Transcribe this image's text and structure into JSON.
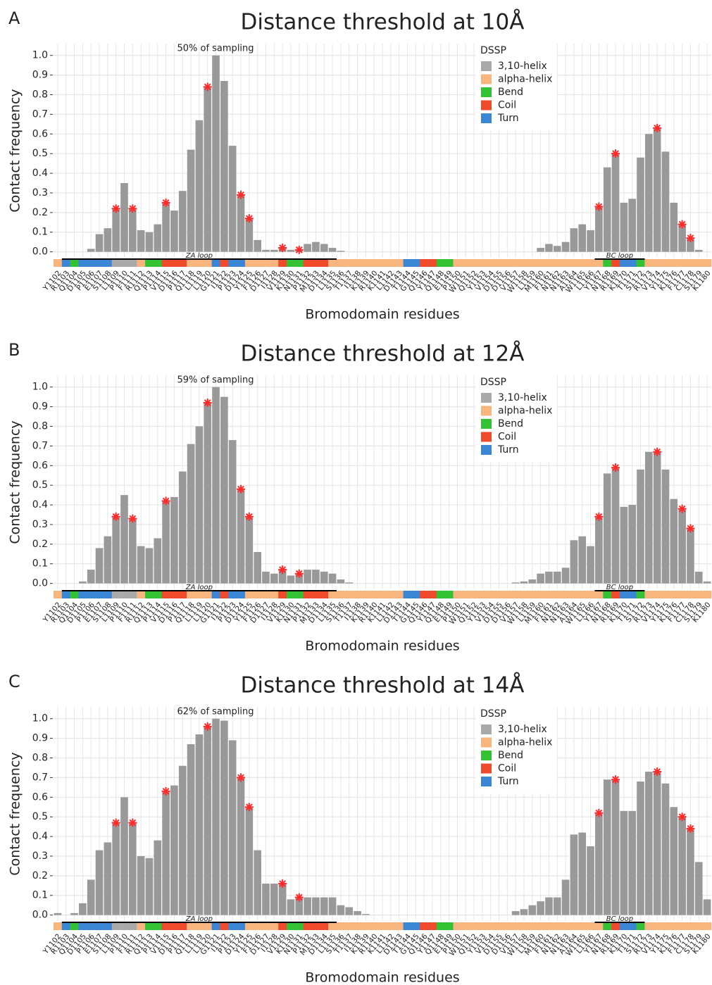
{
  "chart_data": [
    {
      "type": "bar",
      "panel": "A",
      "title": "Distance threshold at 10Å",
      "annotation": "50% of sampling",
      "y_label": "Contact frequency",
      "x_label": "Bromodomain residues",
      "color": "#999999",
      "star_color": "#ff2a2a",
      "grid": true,
      "categories": [
        "Y1102",
        "R1103",
        "Q1104",
        "D1105",
        "P1106",
        "E1107",
        "S1108",
        "L1109",
        "P1110",
        "F1111",
        "R1112",
        "Q1113",
        "P1114",
        "V1115",
        "D1116",
        "P1117",
        "Q1118",
        "L1119",
        "L1120",
        "G1121",
        "I1122",
        "P1123",
        "D1124",
        "Y1125",
        "F1126",
        "D1127",
        "I1128",
        "V1129",
        "K1130",
        "N1131",
        "P1132",
        "M1133",
        "D1134",
        "L1135",
        "S1136",
        "T1137",
        "I1138",
        "K1139",
        "R1140",
        "K1141",
        "L1142",
        "D1143",
        "T1144",
        "G1145",
        "Q1146",
        "Y1147",
        "Q1148",
        "E1149",
        "P1150",
        "W1151",
        "Q1152",
        "Y1153",
        "V1154",
        "D1155",
        "D1156",
        "V1157",
        "W1158",
        "L1159",
        "M1160",
        "F1161",
        "N1162",
        "N1163",
        "A1164",
        "W1165",
        "L1166",
        "Y1167",
        "N1168",
        "R1169",
        "K1170",
        "T1171",
        "S1172",
        "R1173",
        "V1174",
        "Y1175",
        "K1176",
        "F1177",
        "C1178",
        "S1179",
        "K1180"
      ],
      "values": [
        0,
        0,
        0,
        0,
        0.015,
        0.09,
        0.12,
        0.22,
        0.35,
        0.22,
        0.11,
        0.1,
        0.14,
        0.25,
        0.21,
        0.31,
        0.52,
        0.67,
        0.84,
        1.0,
        0.87,
        0.54,
        0.29,
        0.17,
        0.06,
        0.01,
        0.01,
        0.02,
        0.01,
        0.01,
        0.04,
        0.05,
        0.04,
        0.02,
        0.005,
        0,
        0,
        0,
        0,
        0,
        0,
        0,
        0,
        0,
        0,
        0,
        0,
        0,
        0,
        0,
        0,
        0,
        0,
        0,
        0,
        0,
        0,
        0,
        0.02,
        0.04,
        0.03,
        0.05,
        0.12,
        0.14,
        0.11,
        0.23,
        0.43,
        0.5,
        0.25,
        0.27,
        0.48,
        0.6,
        0.63,
        0.51,
        0.25,
        0.14,
        0.07,
        0.01,
        0
      ],
      "starred": [
        "L1109",
        "F1111",
        "V1115",
        "L1120",
        "D1124",
        "Y1125",
        "V1129",
        "N1131",
        "Y1167",
        "R1169",
        "V1174",
        "F1177",
        "C1178"
      ],
      "ylim": [
        -0.03,
        1.06
      ],
      "yticks": [
        {
          "value": 0,
          "label": "0.0"
        },
        0.1,
        0.2,
        0.3,
        0.4,
        0.5,
        0.6,
        0.7,
        0.8,
        0.9,
        {
          "value": 1,
          "label": "1.0"
        }
      ]
    },
    {
      "type": "bar",
      "panel": "B",
      "title": "Distance threshold at 12Å",
      "annotation": "59% of sampling",
      "y_label": "Contact frequency",
      "x_label": "Bromodomain residues",
      "color": "#999999",
      "star_color": "#ff2a2a",
      "grid": true,
      "categories": [
        "Y1102",
        "R1103",
        "Q1104",
        "D1105",
        "P1106",
        "E1107",
        "S1108",
        "L1109",
        "P1110",
        "F1111",
        "R1112",
        "Q1113",
        "P1114",
        "V1115",
        "D1116",
        "P1117",
        "Q1118",
        "L1119",
        "L1120",
        "G1121",
        "I1122",
        "P1123",
        "D1124",
        "Y1125",
        "F1126",
        "D1127",
        "I1128",
        "V1129",
        "K1130",
        "N1131",
        "P1132",
        "M1133",
        "D1134",
        "L1135",
        "S1136",
        "T1137",
        "I1138",
        "K1139",
        "R1140",
        "K1141",
        "L1142",
        "D1143",
        "T1144",
        "G1145",
        "Q1146",
        "Y1147",
        "Q1148",
        "E1149",
        "P1150",
        "W1151",
        "Q1152",
        "Y1153",
        "V1154",
        "D1155",
        "D1156",
        "V1157",
        "W1158",
        "L1159",
        "M1160",
        "F1161",
        "N1162",
        "N1163",
        "A1164",
        "W1165",
        "L1166",
        "Y1167",
        "N1168",
        "R1169",
        "K1170",
        "T1171",
        "S1172",
        "R1173",
        "V1174",
        "Y1175",
        "K1176",
        "F1177",
        "C1178",
        "S1179",
        "K1180"
      ],
      "values": [
        0,
        0,
        0,
        0.01,
        0.07,
        0.18,
        0.24,
        0.34,
        0.45,
        0.33,
        0.19,
        0.18,
        0.23,
        0.42,
        0.44,
        0.57,
        0.71,
        0.8,
        0.92,
        1.0,
        0.95,
        0.73,
        0.48,
        0.34,
        0.16,
        0.06,
        0.05,
        0.07,
        0.04,
        0.05,
        0.07,
        0.07,
        0.06,
        0.05,
        0.02,
        0.005,
        0,
        0,
        0,
        0,
        0,
        0,
        0,
        0,
        0,
        0,
        0,
        0,
        0,
        0,
        0,
        0,
        0,
        0,
        0,
        0.005,
        0.01,
        0.02,
        0.05,
        0.06,
        0.06,
        0.08,
        0.22,
        0.24,
        0.19,
        0.34,
        0.56,
        0.59,
        0.39,
        0.4,
        0.58,
        0.67,
        0.67,
        0.58,
        0.43,
        0.38,
        0.28,
        0.06,
        0.01
      ],
      "starred": [
        "L1109",
        "F1111",
        "V1115",
        "L1120",
        "D1124",
        "Y1125",
        "V1129",
        "N1131",
        "Y1167",
        "R1169",
        "V1174",
        "F1177",
        "C1178"
      ],
      "ylim": [
        -0.03,
        1.06
      ],
      "yticks": [
        {
          "value": 0,
          "label": "0.0"
        },
        0.1,
        0.2,
        0.3,
        0.4,
        0.5,
        0.6,
        0.7,
        0.8,
        0.9,
        {
          "value": 1,
          "label": "1.0"
        }
      ]
    },
    {
      "type": "bar",
      "panel": "C",
      "title": "Distance threshold at 14Å",
      "annotation": "62% of sampling",
      "y_label": "Contact frequency",
      "x_label": "Bromodomain residues",
      "color": "#999999",
      "star_color": "#ff2a2a",
      "grid": true,
      "categories": [
        "Y1102",
        "R1103",
        "Q1104",
        "D1105",
        "P1106",
        "E1107",
        "S1108",
        "L1109",
        "P1110",
        "F1111",
        "R1112",
        "Q1113",
        "P1114",
        "V1115",
        "D1116",
        "P1117",
        "Q1118",
        "L1119",
        "L1120",
        "G1121",
        "I1122",
        "P1123",
        "D1124",
        "Y1125",
        "F1126",
        "D1127",
        "I1128",
        "V1129",
        "K1130",
        "N1131",
        "P1132",
        "M1133",
        "D1134",
        "L1135",
        "S1136",
        "T1137",
        "I1138",
        "K1139",
        "R1140",
        "K1141",
        "L1142",
        "D1143",
        "T1144",
        "G1145",
        "Q1146",
        "Y1147",
        "Q1148",
        "E1149",
        "P1150",
        "W1151",
        "Q1152",
        "Y1153",
        "V1154",
        "D1155",
        "D1156",
        "V1157",
        "W1158",
        "L1159",
        "M1160",
        "F1161",
        "N1162",
        "N1163",
        "A1164",
        "W1165",
        "L1166",
        "Y1167",
        "N1168",
        "R1169",
        "K1170",
        "T1171",
        "S1172",
        "R1173",
        "V1174",
        "Y1175",
        "K1176",
        "F1177",
        "C1178",
        "S1179",
        "K1180"
      ],
      "values": [
        0.01,
        0,
        0.01,
        0.06,
        0.18,
        0.33,
        0.37,
        0.47,
        0.6,
        0.47,
        0.3,
        0.29,
        0.38,
        0.63,
        0.66,
        0.76,
        0.87,
        0.92,
        0.96,
        1.0,
        0.99,
        0.89,
        0.7,
        0.55,
        0.33,
        0.16,
        0.16,
        0.16,
        0.08,
        0.09,
        0.09,
        0.09,
        0.09,
        0.09,
        0.05,
        0.04,
        0.02,
        0.005,
        0,
        0,
        0,
        0,
        0,
        0,
        0,
        0,
        0,
        0,
        0,
        0,
        0,
        0,
        0,
        0,
        0,
        0.02,
        0.03,
        0.05,
        0.07,
        0.09,
        0.09,
        0.18,
        0.41,
        0.42,
        0.35,
        0.52,
        0.69,
        0.69,
        0.53,
        0.53,
        0.68,
        0.73,
        0.73,
        0.67,
        0.55,
        0.5,
        0.44,
        0.27,
        0.08
      ],
      "starred": [
        "L1109",
        "F1111",
        "V1115",
        "L1120",
        "D1124",
        "Y1125",
        "V1129",
        "N1131",
        "Y1167",
        "R1169",
        "V1174",
        "F1177",
        "C1178"
      ],
      "ylim": [
        -0.03,
        1.06
      ],
      "yticks": [
        {
          "value": 0,
          "label": "0.0"
        },
        0.1,
        0.2,
        0.3,
        0.4,
        0.5,
        0.6,
        0.7,
        0.8,
        0.9,
        {
          "value": 1,
          "label": "1.0"
        }
      ]
    }
  ],
  "dssp": {
    "title": "DSSP",
    "legend": "top-right",
    "classes": [
      {
        "name": "3,10-helix",
        "color": "#aaaaaa"
      },
      {
        "name": "alpha-helix",
        "color": "#f9b57e"
      },
      {
        "name": "Bend",
        "color": "#33c233"
      },
      {
        "name": "Coil",
        "color": "#f04a2c"
      },
      {
        "name": "Turn",
        "color": "#3a86d4"
      }
    ],
    "residues": [
      "alpha-helix",
      "Turn",
      "Bend",
      "Turn",
      "Turn",
      "Turn",
      "Turn",
      "3,10-helix",
      "3,10-helix",
      "3,10-helix",
      "alpha-helix",
      "Bend",
      "Bend",
      "Coil",
      "Coil",
      "Coil",
      "alpha-helix",
      "alpha-helix",
      "alpha-helix",
      "Turn",
      "Coil",
      "Turn",
      "Turn",
      "alpha-helix",
      "alpha-helix",
      "alpha-helix",
      "alpha-helix",
      "Coil",
      "Bend",
      "Bend",
      "Coil",
      "Coil",
      "Coil",
      "alpha-helix",
      "alpha-helix",
      "alpha-helix",
      "alpha-helix",
      "alpha-helix",
      "alpha-helix",
      "alpha-helix",
      "alpha-helix",
      "alpha-helix",
      "Turn",
      "Turn",
      "Coil",
      "Coil",
      "Bend",
      "Bend",
      "alpha-helix",
      "alpha-helix",
      "alpha-helix",
      "alpha-helix",
      "alpha-helix",
      "alpha-helix",
      "alpha-helix",
      "alpha-helix",
      "alpha-helix",
      "alpha-helix",
      "alpha-helix",
      "alpha-helix",
      "alpha-helix",
      "alpha-helix",
      "alpha-helix",
      "alpha-helix",
      "alpha-helix",
      "alpha-helix",
      "Bend",
      "Coil",
      "Turn",
      "Turn",
      "Bend",
      "alpha-helix",
      "alpha-helix",
      "alpha-helix",
      "alpha-helix",
      "alpha-helix",
      "alpha-helix",
      "alpha-helix",
      "alpha-helix"
    ]
  },
  "loops": [
    {
      "label": "ZA loop",
      "from": "R1103",
      "to": "L1135"
    },
    {
      "label": "BC loop",
      "from": "Y1167",
      "to": "S1172"
    }
  ]
}
